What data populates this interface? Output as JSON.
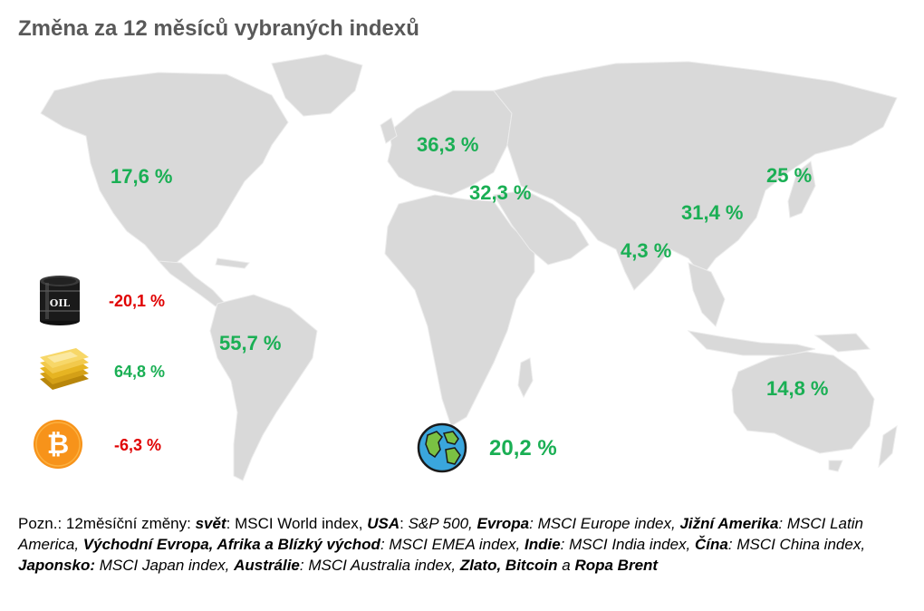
{
  "title": "Změna za 12 měsíců vybraných indexů",
  "colors": {
    "positive": "#1aaf54",
    "negative": "#e00000",
    "map": "#d9d9d9",
    "title": "#595959"
  },
  "regions": {
    "usa": "17,6 %",
    "europe": "36,3 %",
    "emea": "32,3 %",
    "japan": "25 %",
    "china": "31,4 %",
    "india": "4,3 %",
    "latin_america": "55,7 %",
    "australia": "14,8 %",
    "world": "20,2 %"
  },
  "commodities": {
    "oil": {
      "icon": "oil-barrel-icon",
      "label": "OIL",
      "value": "-20,1 %"
    },
    "gold": {
      "icon": "gold-bars-icon",
      "value": "64,8 %"
    },
    "bitcoin": {
      "icon": "bitcoin-icon",
      "value": "-6,3 %"
    }
  },
  "world_icon": "globe-icon",
  "note": {
    "prefix": "Pozn.: 12měsíční změny: ",
    "items": [
      {
        "key": "svět",
        "sep": ": ",
        "text": "MSCI World index, "
      },
      {
        "key": "USA",
        "sep": ": ",
        "text": "S&P 500, "
      },
      {
        "key": "Evropa",
        "sep": ": ",
        "text": "MSCI Europe index, "
      },
      {
        "key": "Jižní Amerika",
        "sep": ": ",
        "text": "MSCI Latin America, "
      },
      {
        "key": "Východní Evropa, Afrika a Blízký východ",
        "sep": ": ",
        "text": "MSCI EMEA index, "
      },
      {
        "key": "Indie",
        "sep": ": ",
        "text": "MSCI India index, "
      },
      {
        "key": "Čína",
        "sep": ": ",
        "text": "MSCI China index, "
      },
      {
        "key": "Japonsko:",
        "sep": " ",
        "text": "MSCI Japan index, "
      },
      {
        "key": "Austrálie",
        "sep": ": ",
        "text": "MSCI Australia index, "
      }
    ],
    "tail_key1": "Zlato, Bitcoin",
    "tail_and": " a ",
    "tail_key2": "Ropa Brent"
  }
}
